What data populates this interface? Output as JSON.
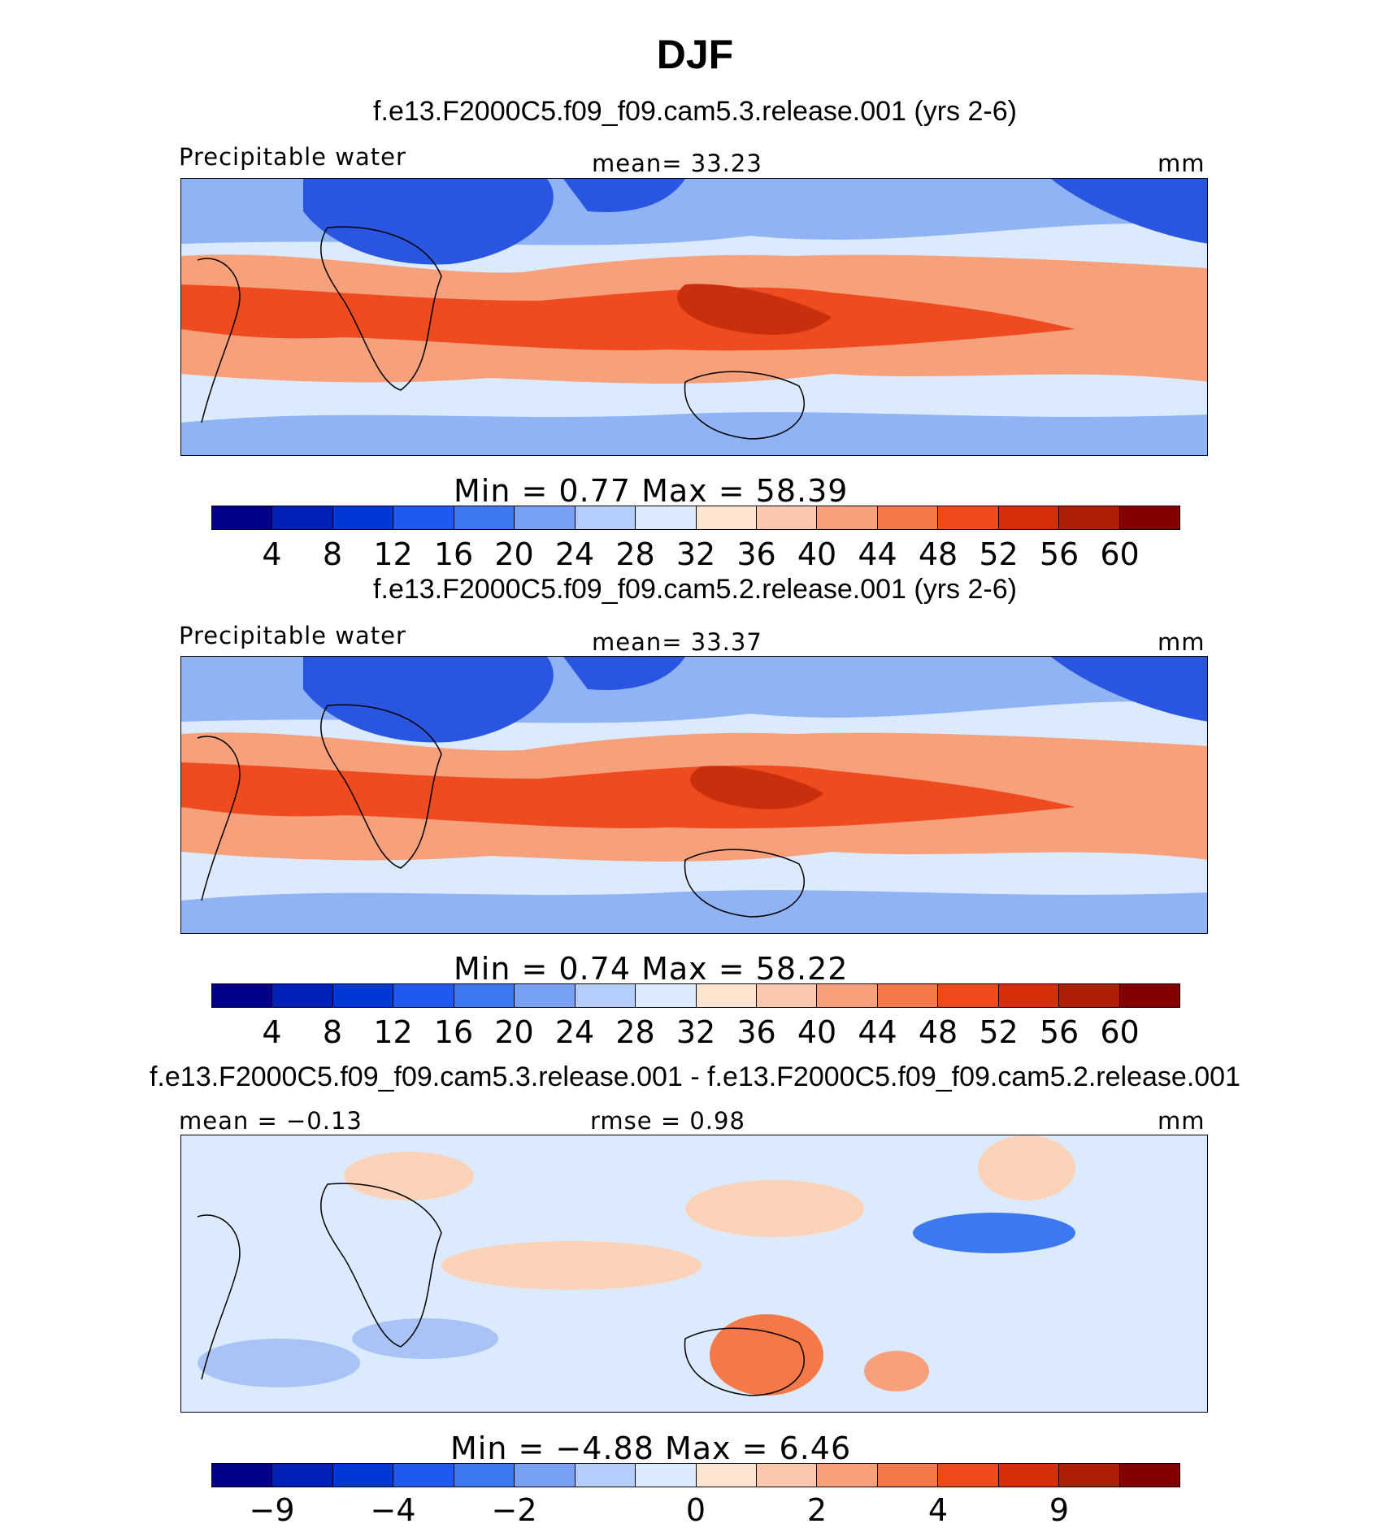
{
  "title": "DJF",
  "panels": [
    {
      "title": "f.e13.F2000C5.f09_f09.cam5.3.release.001 (yrs 2-6)",
      "left_label": "Precipitable water",
      "center_label": "mean=   33.23",
      "right_label": "mm",
      "minmax": "Min  =     0.77  Max  =    58.39",
      "colorbar_ticks": [
        "4",
        "8",
        "12",
        "16",
        "20",
        "24",
        "28",
        "32",
        "36",
        "40",
        "44",
        "48",
        "52",
        "56",
        "60"
      ]
    },
    {
      "title": "f.e13.F2000C5.f09_f09.cam5.2.release.001 (yrs 2-6)",
      "left_label": "Precipitable water",
      "center_label": "mean=   33.37",
      "right_label": "mm",
      "minmax": "Min  =     0.74  Max  =    58.22",
      "colorbar_ticks": [
        "4",
        "8",
        "12",
        "16",
        "20",
        "24",
        "28",
        "32",
        "36",
        "40",
        "44",
        "48",
        "52",
        "56",
        "60"
      ]
    },
    {
      "title": "f.e13.F2000C5.f09_f09.cam5.3.release.001 - f.e13.F2000C5.f09_f09.cam5.2.release.001",
      "left_label": "mean  =   −0.13",
      "center_label": "rmse  =     0.98",
      "right_label": "mm",
      "minmax": "Min  =    −4.88  Max  =      6.46",
      "colorbar_ticks": [
        "−9",
        "−4",
        "−2",
        "0",
        "2",
        "4",
        "9"
      ]
    }
  ],
  "colorbar_colors": [
    "#00008b",
    "#0020b8",
    "#0038d8",
    "#1e5af0",
    "#3c78f0",
    "#78a0f5",
    "#b4cdfa",
    "#dceafd",
    "#fde4d0",
    "#fcc8ad",
    "#f8a07a",
    "#f57848",
    "#f04a1c",
    "#d72d0a",
    "#b01e05",
    "#820000"
  ],
  "map_colors": {
    "pw_low": "#2a55e0",
    "pw_mid_low": "#8fb3f5",
    "pw_neutral": "#dceafd",
    "pw_mid_high": "#f7a07c",
    "pw_high": "#ee4b20",
    "pw_max": "#c8300d",
    "diff_base": "#dceafd",
    "diff_pos": "#fcd2b8",
    "diff_neg": "#a9c3f7"
  }
}
